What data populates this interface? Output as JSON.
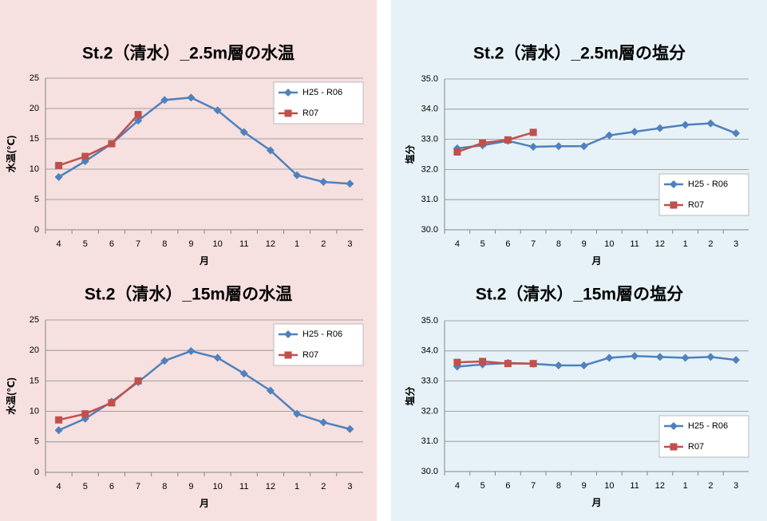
{
  "chart_data": [
    {
      "type": "line",
      "title": "St.2（清水）_2.5m層の水温",
      "x_label": "月",
      "y_label": "水温(℃)",
      "categories": [
        "4",
        "5",
        "6",
        "7",
        "8",
        "9",
        "10",
        "11",
        "12",
        "1",
        "2",
        "3"
      ],
      "series": [
        {
          "name": "H25 - R06",
          "color": "#4f81bd",
          "marker": "diamond",
          "values": [
            8.7,
            11.3,
            14.2,
            18.0,
            21.4,
            21.8,
            19.7,
            16.1,
            13.1,
            9.0,
            7.9,
            7.6
          ]
        },
        {
          "name": "R07",
          "color": "#c0504d",
          "marker": "square",
          "values": [
            10.6,
            12.1,
            14.2,
            19.0,
            null,
            null,
            null,
            null,
            null,
            null,
            null,
            null
          ]
        }
      ],
      "ylim": [
        0,
        25
      ],
      "yticks": [
        0,
        5,
        10,
        15,
        20,
        25
      ],
      "grid": true,
      "legend": "upper right"
    },
    {
      "type": "line",
      "title": "St.2（清水）_2.5m層の塩分",
      "x_label": "月",
      "y_label": "塩分",
      "categories": [
        "4",
        "5",
        "6",
        "7",
        "8",
        "9",
        "10",
        "11",
        "12",
        "1",
        "2",
        "3"
      ],
      "series": [
        {
          "name": "H25 - R06",
          "color": "#4f81bd",
          "marker": "diamond",
          "values": [
            32.7,
            32.8,
            32.95,
            32.75,
            32.77,
            32.77,
            33.13,
            33.25,
            33.37,
            33.48,
            33.53,
            33.2
          ]
        },
        {
          "name": "R07",
          "color": "#c0504d",
          "marker": "square",
          "values": [
            32.58,
            32.88,
            32.98,
            33.23,
            null,
            null,
            null,
            null,
            null,
            null,
            null,
            null
          ]
        }
      ],
      "ylim": [
        30,
        35
      ],
      "yticks": [
        {
          "value": 30,
          "label": "30.0"
        },
        {
          "value": 31,
          "label": "31.0"
        },
        {
          "value": 32,
          "label": "32.0"
        },
        {
          "value": 33,
          "label": "33.0"
        },
        {
          "value": 34,
          "label": "34.0"
        },
        {
          "value": 35,
          "label": "35.0"
        }
      ],
      "grid": true,
      "legend": "lower right"
    },
    {
      "type": "line",
      "title": "St.2（清水）_15m層の水温",
      "x_label": "月",
      "y_label": "水温(℃)",
      "categories": [
        "4",
        "5",
        "6",
        "7",
        "8",
        "9",
        "10",
        "11",
        "12",
        "1",
        "2",
        "3"
      ],
      "series": [
        {
          "name": "H25 - R06",
          "color": "#4f81bd",
          "marker": "diamond",
          "values": [
            6.9,
            8.8,
            11.6,
            14.8,
            18.3,
            19.9,
            18.8,
            16.2,
            13.4,
            9.6,
            8.2,
            7.1
          ]
        },
        {
          "name": "R07",
          "color": "#c0504d",
          "marker": "square",
          "values": [
            8.6,
            9.6,
            11.4,
            15.0,
            null,
            null,
            null,
            null,
            null,
            null,
            null,
            null
          ]
        }
      ],
      "ylim": [
        0,
        25
      ],
      "yticks": [
        0,
        5,
        10,
        15,
        20,
        25
      ],
      "grid": true,
      "legend": "upper right"
    },
    {
      "type": "line",
      "title": "St.2（清水）_15m層の塩分",
      "x_label": "月",
      "y_label": "塩分",
      "categories": [
        "4",
        "5",
        "6",
        "7",
        "8",
        "9",
        "10",
        "11",
        "12",
        "1",
        "2",
        "3"
      ],
      "series": [
        {
          "name": "H25 - R06",
          "color": "#4f81bd",
          "marker": "diamond",
          "values": [
            33.48,
            33.55,
            33.6,
            33.57,
            33.52,
            33.52,
            33.77,
            33.83,
            33.8,
            33.77,
            33.8,
            33.7
          ]
        },
        {
          "name": "R07",
          "color": "#c0504d",
          "marker": "square",
          "values": [
            33.62,
            33.65,
            33.58,
            33.58,
            null,
            null,
            null,
            null,
            null,
            null,
            null,
            null
          ]
        }
      ],
      "ylim": [
        30,
        35
      ],
      "yticks": [
        {
          "value": 30,
          "label": "30.0"
        },
        {
          "value": 31,
          "label": "31.0"
        },
        {
          "value": 32,
          "label": "32.0"
        },
        {
          "value": 33,
          "label": "33.0"
        },
        {
          "value": 34,
          "label": "34.0"
        },
        {
          "value": 35,
          "label": "35.0"
        }
      ],
      "grid": true,
      "legend": "lower right"
    }
  ]
}
